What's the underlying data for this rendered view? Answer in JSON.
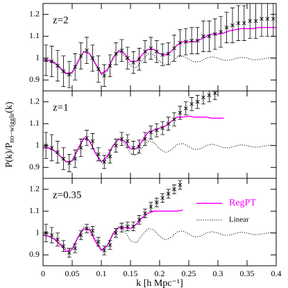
{
  "chart_data": [
    {
      "type": "line",
      "label": "z=2",
      "ylim": [
        0.85,
        1.25
      ],
      "yticks": [
        0.9,
        1,
        1.1,
        1.2
      ],
      "series": [
        {
          "color": "#ff00ff",
          "style": "solid",
          "x": [
            0,
            0.01,
            0.02,
            0.03,
            0.04,
            0.05,
            0.06,
            0.07,
            0.08,
            0.09,
            0.1,
            0.11,
            0.12,
            0.13,
            0.14,
            0.15,
            0.16,
            0.17,
            0.18,
            0.19,
            0.2,
            0.21,
            0.22,
            0.23,
            0.24,
            0.25,
            0.26,
            0.27,
            0.28,
            0.29,
            0.3,
            0.31,
            0.32,
            0.33,
            0.34,
            0.35,
            0.36,
            0.37,
            0.38,
            0.39,
            0.4
          ],
          "values": [
            0.99,
            0.99,
            0.98,
            0.955,
            0.93,
            0.935,
            0.985,
            1.03,
            1.02,
            0.975,
            0.93,
            0.945,
            1.0,
            1.035,
            1.02,
            0.985,
            0.985,
            1.015,
            1.04,
            1.04,
            1.02,
            1.015,
            1.03,
            1.06,
            1.075,
            1.075,
            1.075,
            1.085,
            1.1,
            1.11,
            1.11,
            1.115,
            1.125,
            1.13,
            1.135,
            1.135,
            1.135,
            1.14,
            1.14,
            1.14,
            1.14
          ]
        },
        {
          "color": "#000000",
          "style": "dotted",
          "x": [
            0,
            0.01,
            0.02,
            0.03,
            0.04,
            0.05,
            0.06,
            0.07,
            0.08,
            0.09,
            0.1,
            0.11,
            0.12,
            0.13,
            0.14,
            0.15,
            0.16,
            0.17,
            0.18,
            0.19,
            0.2,
            0.21,
            0.22,
            0.23,
            0.24,
            0.25,
            0.26,
            0.27,
            0.28,
            0.29,
            0.3,
            0.31,
            0.32,
            0.33,
            0.34,
            0.35,
            0.36,
            0.37,
            0.38,
            0.39,
            0.4
          ],
          "values": [
            0.99,
            0.985,
            0.975,
            0.95,
            0.925,
            0.93,
            0.98,
            1.03,
            1.02,
            0.97,
            0.925,
            0.94,
            1.0,
            1.03,
            1.01,
            0.965,
            0.955,
            0.99,
            1.02,
            1.015,
            0.985,
            0.968,
            0.98,
            1.005,
            1.01,
            0.995,
            0.982,
            0.985,
            1.0,
            1.006,
            1.0,
            0.99,
            0.99,
            0.998,
            1.004,
            1.0,
            0.993,
            0.993,
            0.998,
            1.002,
            1.0
          ]
        }
      ],
      "points": {
        "color": "#000000",
        "x": [
          0.005,
          0.015,
          0.025,
          0.035,
          0.045,
          0.055,
          0.065,
          0.075,
          0.085,
          0.095,
          0.105,
          0.115,
          0.125,
          0.135,
          0.145,
          0.155,
          0.165,
          0.175,
          0.185,
          0.195,
          0.205,
          0.215,
          0.225,
          0.235,
          0.245,
          0.255,
          0.265,
          0.275,
          0.285,
          0.295,
          0.305,
          0.315,
          0.325,
          0.335,
          0.345,
          0.355,
          0.365,
          0.375,
          0.385,
          0.395
        ],
        "values": [
          0.99,
          0.985,
          0.965,
          0.94,
          0.925,
          0.96,
          1.01,
          1.035,
          1.0,
          0.95,
          0.92,
          0.965,
          1.02,
          1.035,
          1.0,
          0.98,
          0.995,
          1.03,
          1.045,
          1.03,
          1.015,
          1.02,
          1.045,
          1.07,
          1.075,
          1.08,
          1.08,
          1.1,
          1.1,
          1.11,
          1.12,
          1.14,
          1.15,
          1.16,
          1.16,
          1.17,
          1.17,
          1.18,
          1.18,
          1.18
        ],
        "errors": [
          0.07,
          0.07,
          0.07,
          0.07,
          0.06,
          0.06,
          0.06,
          0.06,
          0.06,
          0.06,
          0.05,
          0.05,
          0.05,
          0.05,
          0.05,
          0.05,
          0.05,
          0.05,
          0.05,
          0.05,
          0.05,
          0.05,
          0.06,
          0.06,
          0.06,
          0.06,
          0.06,
          0.07,
          0.07,
          0.07,
          0.07,
          0.07,
          0.08,
          0.08,
          0.08,
          0.08,
          0.08,
          0.08,
          0.08,
          0.08
        ]
      }
    },
    {
      "type": "line",
      "label": "z=1",
      "ylim": [
        0.85,
        1.25
      ],
      "yticks": [
        0.9,
        1,
        1.1,
        1.2
      ],
      "ylabel": [
        "P(k)/P",
        "no−wiggle",
        "(k)"
      ],
      "series": [
        {
          "color": "#ff00ff",
          "style": "solid",
          "x": [
            0,
            0.01,
            0.02,
            0.03,
            0.04,
            0.05,
            0.06,
            0.07,
            0.08,
            0.09,
            0.1,
            0.11,
            0.12,
            0.13,
            0.14,
            0.15,
            0.16,
            0.17,
            0.18,
            0.19,
            0.2,
            0.21,
            0.22,
            0.23,
            0.24,
            0.25,
            0.26,
            0.27,
            0.28,
            0.29,
            0.3,
            0.31
          ],
          "values": [
            0.99,
            0.99,
            0.975,
            0.95,
            0.925,
            0.93,
            0.985,
            1.035,
            1.02,
            0.965,
            0.925,
            0.95,
            1.0,
            1.03,
            1.02,
            0.985,
            0.985,
            1.02,
            1.06,
            1.07,
            1.08,
            1.09,
            1.11,
            1.13,
            1.13,
            1.135,
            1.13,
            1.13,
            1.13,
            1.125,
            1.125,
            1.125
          ]
        },
        {
          "color": "#000000",
          "style": "dotted",
          "x": [
            0,
            0.01,
            0.02,
            0.03,
            0.04,
            0.05,
            0.06,
            0.07,
            0.08,
            0.09,
            0.1,
            0.11,
            0.12,
            0.13,
            0.14,
            0.15,
            0.16,
            0.17,
            0.18,
            0.19,
            0.2,
            0.21,
            0.22,
            0.23,
            0.24,
            0.25,
            0.26,
            0.27,
            0.28,
            0.29,
            0.3,
            0.31,
            0.32,
            0.33,
            0.34,
            0.35,
            0.36,
            0.37,
            0.38,
            0.39,
            0.4
          ],
          "values": [
            0.99,
            0.985,
            0.975,
            0.95,
            0.925,
            0.93,
            0.98,
            1.03,
            1.02,
            0.97,
            0.925,
            0.94,
            1.0,
            1.03,
            1.01,
            0.965,
            0.955,
            0.99,
            1.02,
            1.015,
            0.985,
            0.968,
            0.98,
            1.005,
            1.01,
            0.995,
            0.982,
            0.985,
            1.0,
            1.006,
            1.0,
            0.99,
            0.99,
            0.998,
            1.004,
            1.0,
            0.993,
            0.993,
            0.998,
            1.002,
            1.0
          ]
        }
      ],
      "points": {
        "color": "#000000",
        "x": [
          0.005,
          0.015,
          0.025,
          0.035,
          0.045,
          0.055,
          0.065,
          0.075,
          0.085,
          0.095,
          0.105,
          0.115,
          0.125,
          0.135,
          0.145,
          0.155,
          0.165,
          0.175,
          0.185,
          0.195,
          0.205,
          0.215,
          0.225,
          0.235,
          0.245,
          0.255,
          0.265,
          0.275,
          0.285,
          0.295
        ],
        "values": [
          1.0,
          0.99,
          0.97,
          0.94,
          0.92,
          0.94,
          0.99,
          1.035,
          1.02,
          0.96,
          0.925,
          0.95,
          1.0,
          1.03,
          1.02,
          0.99,
          0.995,
          1.03,
          1.06,
          1.07,
          1.08,
          1.1,
          1.12,
          1.15,
          1.17,
          1.19,
          1.2,
          1.22,
          1.23,
          1.24
        ],
        "errors": [
          0.06,
          0.06,
          0.05,
          0.05,
          0.04,
          0.04,
          0.04,
          0.035,
          0.035,
          0.03,
          0.03,
          0.03,
          0.03,
          0.03,
          0.03,
          0.03,
          0.03,
          0.03,
          0.03,
          0.03,
          0.03,
          0.03,
          0.03,
          0.03,
          0.03,
          0.03,
          0.03,
          0.03,
          0.03,
          0.03
        ]
      }
    },
    {
      "type": "line",
      "label": "z=0.35",
      "ylim": [
        0.85,
        1.25
      ],
      "yticks": [
        0.9,
        1,
        1.1,
        1.2
      ],
      "xlim": [
        0,
        0.4
      ],
      "xticks": [
        0,
        0.05,
        0.1,
        0.15,
        0.2,
        0.25,
        0.3,
        0.35,
        0.4
      ],
      "xlabel": "k [h Mpc⁻¹]",
      "legend": "upper right",
      "series": [
        {
          "name": "RegPT",
          "color": "#ff00ff",
          "style": "solid",
          "x": [
            0,
            0.01,
            0.02,
            0.03,
            0.04,
            0.05,
            0.06,
            0.07,
            0.08,
            0.09,
            0.1,
            0.11,
            0.12,
            0.13,
            0.14,
            0.15,
            0.16,
            0.17,
            0.18,
            0.19,
            0.2,
            0.21,
            0.22,
            0.23,
            0.24
          ],
          "values": [
            0.99,
            0.985,
            0.97,
            0.945,
            0.915,
            0.925,
            0.98,
            1.02,
            1.015,
            0.96,
            0.92,
            0.94,
            0.995,
            1.025,
            1.025,
            1.02,
            1.04,
            1.07,
            1.09,
            1.1,
            1.1,
            1.1,
            1.1,
            1.1,
            1.105
          ]
        },
        {
          "name": "Linear",
          "color": "#000000",
          "style": "dotted",
          "x": [
            0,
            0.01,
            0.02,
            0.03,
            0.04,
            0.05,
            0.06,
            0.07,
            0.08,
            0.09,
            0.1,
            0.11,
            0.12,
            0.13,
            0.14,
            0.15,
            0.16,
            0.17,
            0.18,
            0.19,
            0.2,
            0.21,
            0.22,
            0.23,
            0.24,
            0.25,
            0.26,
            0.27,
            0.28,
            0.29,
            0.3,
            0.31,
            0.32,
            0.33,
            0.34,
            0.35,
            0.36,
            0.37,
            0.38,
            0.39,
            0.4
          ],
          "values": [
            0.99,
            0.985,
            0.975,
            0.95,
            0.925,
            0.93,
            0.98,
            1.03,
            1.02,
            0.97,
            0.925,
            0.94,
            1.0,
            1.03,
            1.01,
            0.965,
            0.955,
            0.99,
            1.02,
            1.015,
            0.985,
            0.968,
            0.98,
            1.005,
            1.01,
            0.995,
            0.982,
            0.985,
            1.0,
            1.006,
            1.0,
            0.99,
            0.99,
            0.998,
            1.004,
            1.0,
            0.993,
            0.993,
            0.998,
            1.002,
            1.0
          ]
        }
      ],
      "points": {
        "color": "#000000",
        "x": [
          0.005,
          0.015,
          0.025,
          0.035,
          0.045,
          0.055,
          0.065,
          0.075,
          0.085,
          0.095,
          0.105,
          0.115,
          0.125,
          0.135,
          0.145,
          0.155,
          0.165,
          0.175,
          0.185,
          0.195,
          0.205,
          0.215,
          0.225,
          0.235
        ],
        "values": [
          1.0,
          0.99,
          0.97,
          0.94,
          0.91,
          0.93,
          0.99,
          1.02,
          1.01,
          0.96,
          0.92,
          0.945,
          1.0,
          1.025,
          1.03,
          1.03,
          1.06,
          1.09,
          1.12,
          1.14,
          1.16,
          1.18,
          1.2,
          1.22
        ],
        "errors": [
          0.04,
          0.035,
          0.03,
          0.025,
          0.02,
          0.02,
          0.02,
          0.02,
          0.02,
          0.02,
          0.02,
          0.02,
          0.02,
          0.02,
          0.02,
          0.02,
          0.02,
          0.02,
          0.02,
          0.02,
          0.02,
          0.02,
          0.02,
          0.02
        ]
      }
    }
  ]
}
